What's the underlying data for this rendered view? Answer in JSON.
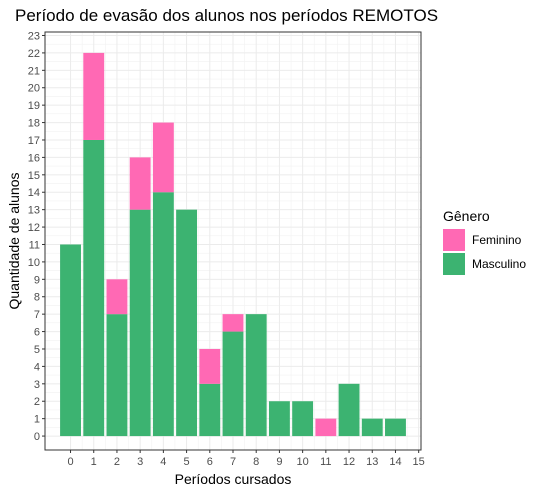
{
  "chart_data": {
    "type": "bar",
    "stacked": true,
    "title": "Período de evasão dos alunos nos períodos REMOTOS",
    "xlabel": "Períodos cursados",
    "ylabel": "Quantidade de alunos",
    "x": [
      0,
      1,
      2,
      3,
      4,
      5,
      6,
      7,
      8,
      9,
      10,
      11,
      12,
      13,
      14
    ],
    "x_ticks": [
      0,
      1,
      2,
      3,
      4,
      5,
      6,
      7,
      8,
      9,
      10,
      11,
      12,
      13,
      14,
      15
    ],
    "y_ticks": [
      0,
      1,
      2,
      3,
      4,
      5,
      6,
      7,
      8,
      9,
      10,
      11,
      12,
      13,
      14,
      15,
      16,
      17,
      18,
      19,
      20,
      21,
      22,
      23
    ],
    "xlim": [
      -1.1,
      15.1
    ],
    "ylim": [
      -0.8,
      23.2
    ],
    "grid": true,
    "legend_title": "Gênero",
    "legend_position": "right",
    "series": [
      {
        "name": "Masculino",
        "color": "#3CB371",
        "values": [
          11,
          17,
          7,
          13,
          14,
          13,
          3,
          6,
          7,
          2,
          2,
          0,
          3,
          1,
          1
        ]
      },
      {
        "name": "Feminino",
        "color": "#FF69B4",
        "values": [
          0,
          5,
          2,
          3,
          4,
          0,
          2,
          1,
          0,
          0,
          0,
          1,
          0,
          0,
          0
        ]
      }
    ],
    "legend_order": [
      "Feminino",
      "Masculino"
    ]
  }
}
